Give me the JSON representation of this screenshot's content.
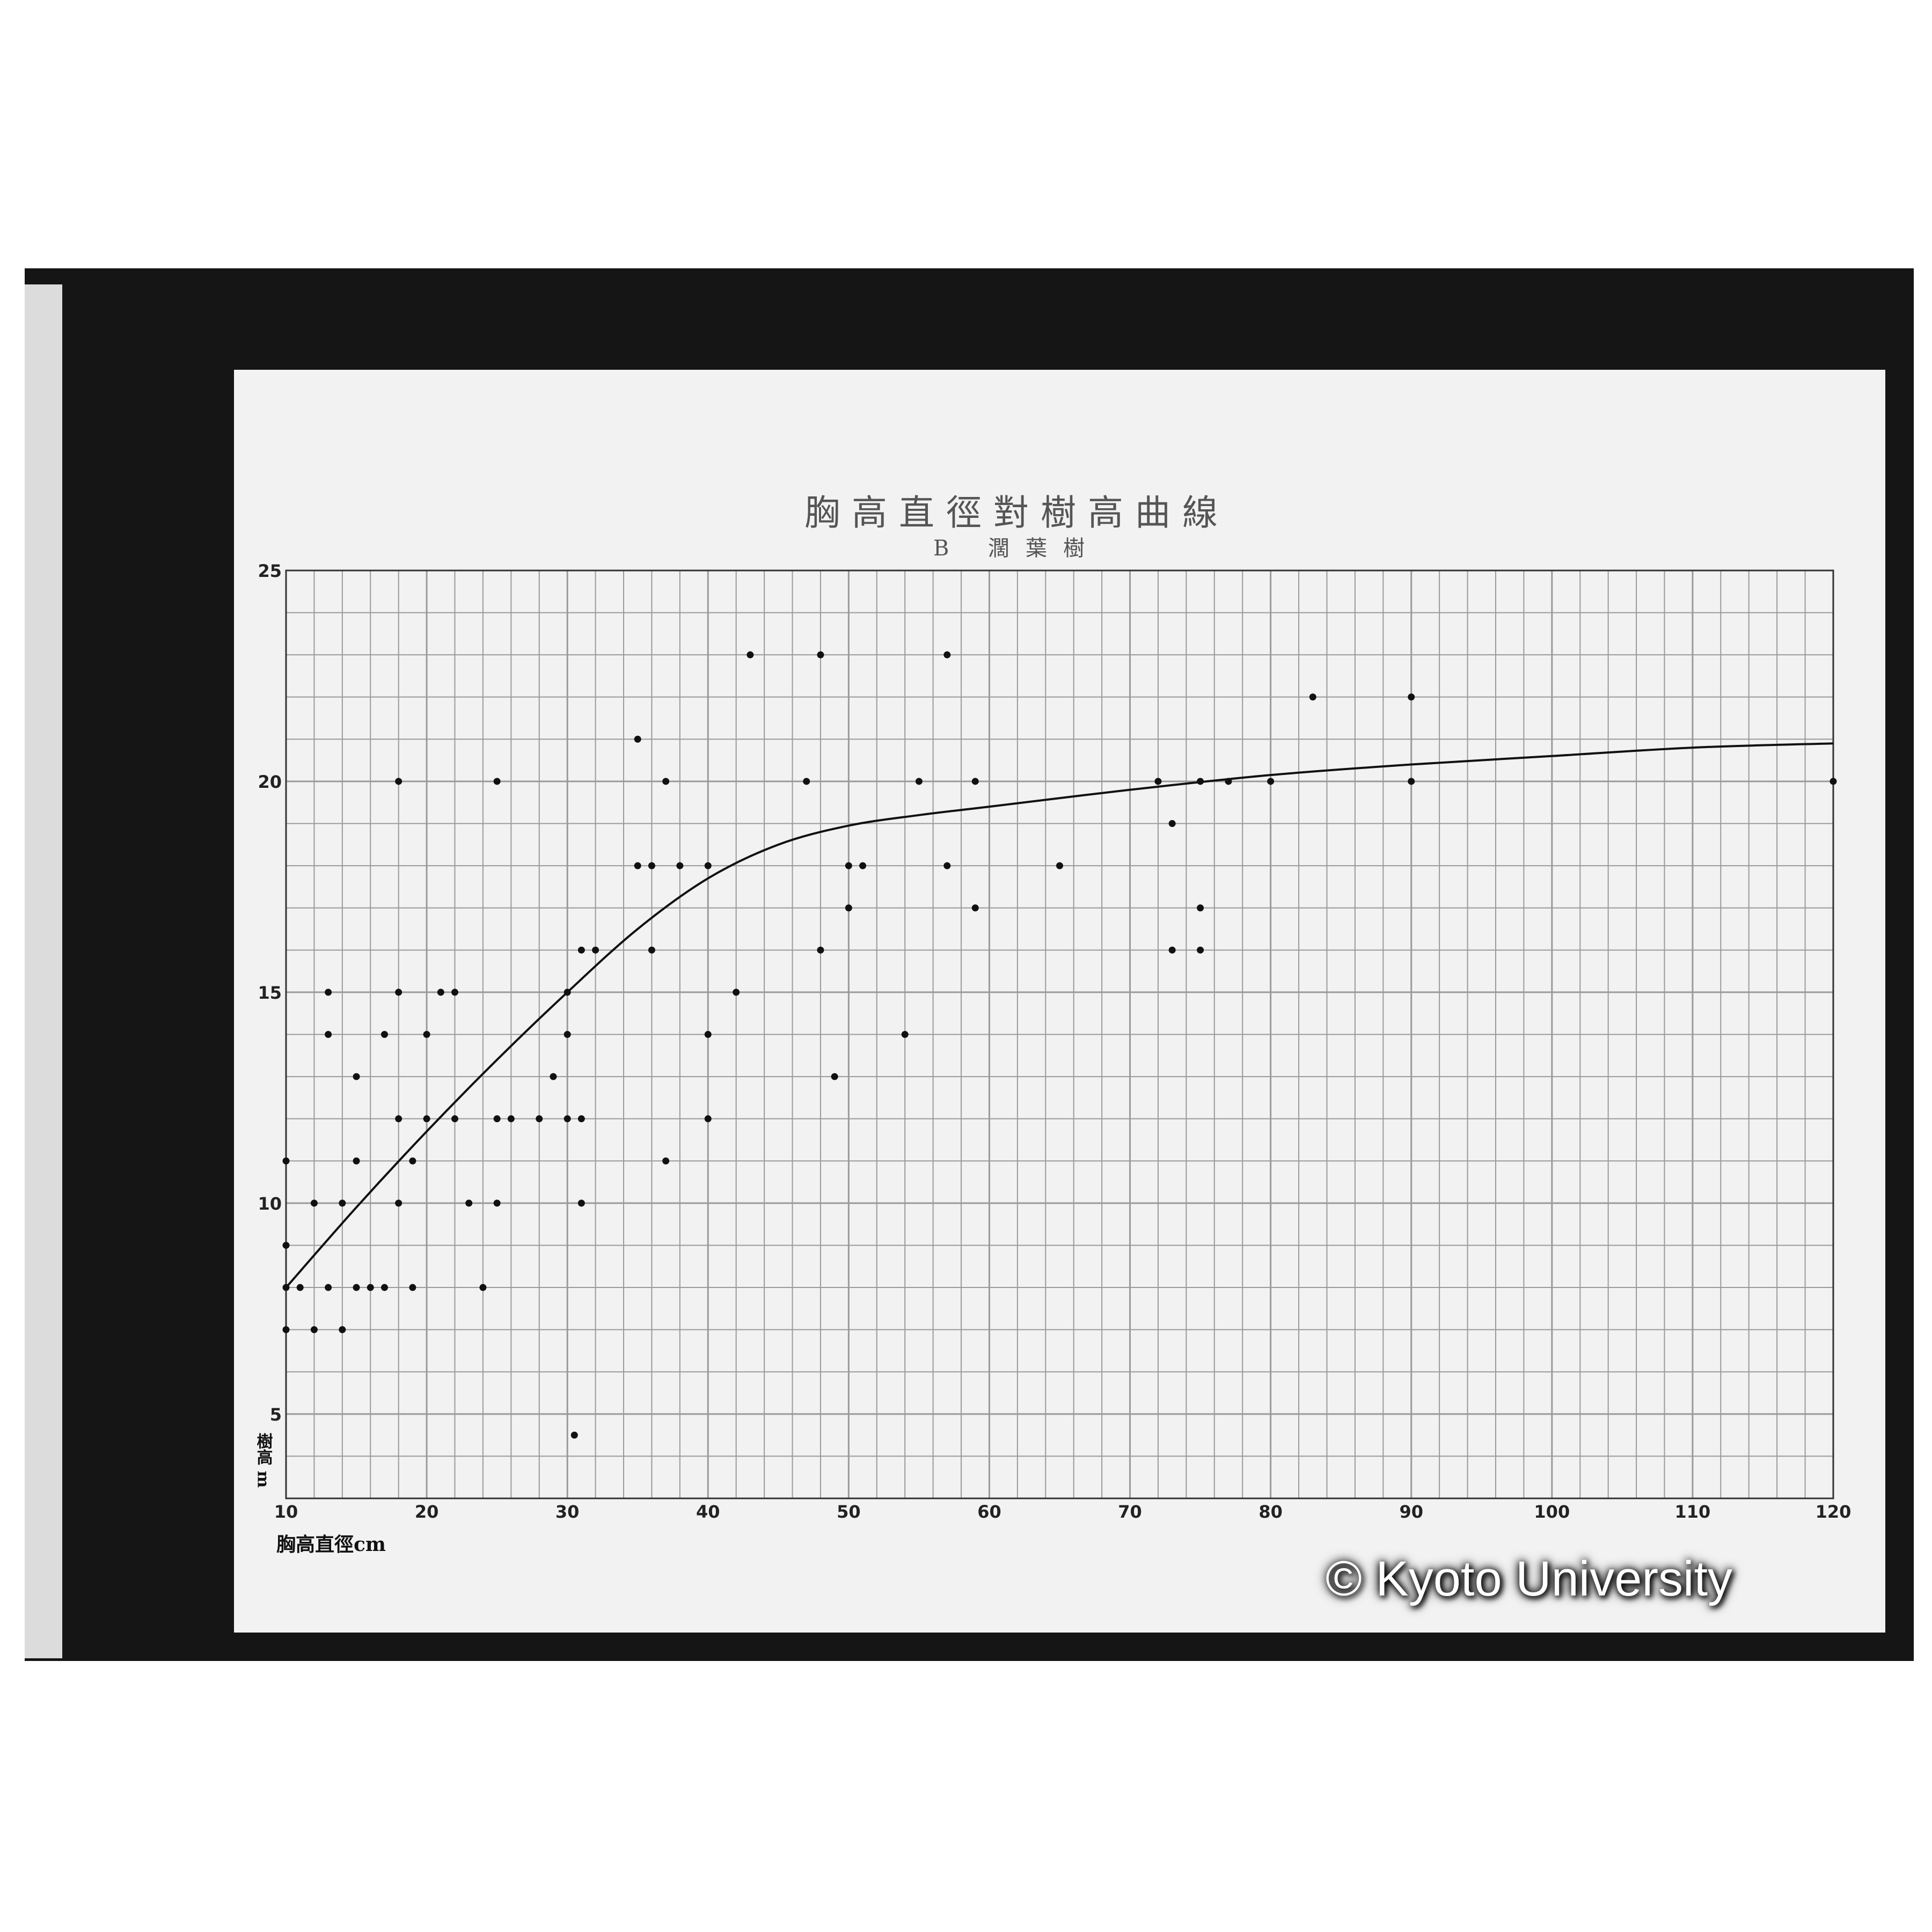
{
  "chart_data": {
    "type": "scatter",
    "title": "胸高直徑對樹高曲線",
    "subtitle": "B 濶葉樹",
    "xlabel": "胸高直徑cm",
    "ylabel": "樹高 m",
    "xlim": [
      10,
      120
    ],
    "ylim": [
      3,
      25
    ],
    "x_ticks": [
      10,
      20,
      30,
      40,
      50,
      60,
      70,
      80,
      90,
      100,
      110,
      120
    ],
    "y_ticks": [
      5,
      10,
      15,
      20,
      25
    ],
    "grid": true,
    "grid_minor_x": 2,
    "grid_minor_y": 1,
    "colors": {
      "paper": "#f2f2f2",
      "frame": "#1a1a1a",
      "ink": "#111111",
      "grid": "#9a9a9a"
    },
    "points": [
      [
        13,
        15
      ],
      [
        18,
        15
      ],
      [
        21,
        15
      ],
      [
        22,
        15
      ],
      [
        30,
        15
      ],
      [
        42,
        15
      ],
      [
        13,
        14
      ],
      [
        17,
        14
      ],
      [
        20,
        14
      ],
      [
        30,
        14
      ],
      [
        40,
        14
      ],
      [
        54,
        14
      ],
      [
        15,
        13
      ],
      [
        29,
        13
      ],
      [
        49,
        13
      ],
      [
        18,
        12
      ],
      [
        20,
        12
      ],
      [
        22,
        12
      ],
      [
        25,
        12
      ],
      [
        26,
        12
      ],
      [
        28,
        12
      ],
      [
        30,
        12
      ],
      [
        31,
        12
      ],
      [
        40,
        12
      ],
      [
        10,
        11
      ],
      [
        15,
        11
      ],
      [
        19,
        11
      ],
      [
        37,
        11
      ],
      [
        12,
        10
      ],
      [
        14,
        10
      ],
      [
        18,
        10
      ],
      [
        23,
        10
      ],
      [
        25,
        10
      ],
      [
        31,
        10
      ],
      [
        10,
        9
      ],
      [
        10,
        8
      ],
      [
        11,
        8
      ],
      [
        13,
        8
      ],
      [
        15,
        8
      ],
      [
        16,
        8
      ],
      [
        17,
        8
      ],
      [
        19,
        8
      ],
      [
        24,
        8
      ],
      [
        10,
        7
      ],
      [
        12,
        7
      ],
      [
        14,
        7
      ],
      [
        30.5,
        4.5
      ],
      [
        18,
        20
      ],
      [
        25,
        20
      ],
      [
        35,
        21
      ],
      [
        37,
        20
      ],
      [
        43,
        23
      ],
      [
        48,
        23
      ],
      [
        57,
        23
      ],
      [
        35,
        18
      ],
      [
        36,
        18
      ],
      [
        38,
        18
      ],
      [
        40,
        18
      ],
      [
        31,
        16
      ],
      [
        32,
        16
      ],
      [
        36,
        16
      ],
      [
        47,
        20
      ],
      [
        55,
        20
      ],
      [
        59,
        20
      ],
      [
        50,
        18
      ],
      [
        51,
        18
      ],
      [
        57,
        18
      ],
      [
        65,
        18
      ],
      [
        50,
        17
      ],
      [
        59,
        17
      ],
      [
        48,
        16
      ],
      [
        83,
        22
      ],
      [
        90,
        22
      ],
      [
        90,
        20
      ],
      [
        72,
        20
      ],
      [
        73,
        19
      ],
      [
        75,
        20
      ],
      [
        77,
        20
      ],
      [
        80,
        20
      ],
      [
        75,
        17
      ],
      [
        73,
        16
      ],
      [
        75,
        16
      ],
      [
        120,
        20
      ]
    ],
    "curve": [
      [
        10,
        8
      ],
      [
        15,
        9.9
      ],
      [
        20,
        11.7
      ],
      [
        25,
        13.4
      ],
      [
        30,
        15
      ],
      [
        35,
        16.5
      ],
      [
        40,
        17.7
      ],
      [
        45,
        18.5
      ],
      [
        50,
        18.95
      ],
      [
        55,
        19.2
      ],
      [
        60,
        19.4
      ],
      [
        70,
        19.8
      ],
      [
        80,
        20.15
      ],
      [
        90,
        20.4
      ],
      [
        100,
        20.6
      ],
      [
        110,
        20.8
      ],
      [
        120,
        20.9
      ]
    ]
  },
  "watermark": "© Kyoto University"
}
